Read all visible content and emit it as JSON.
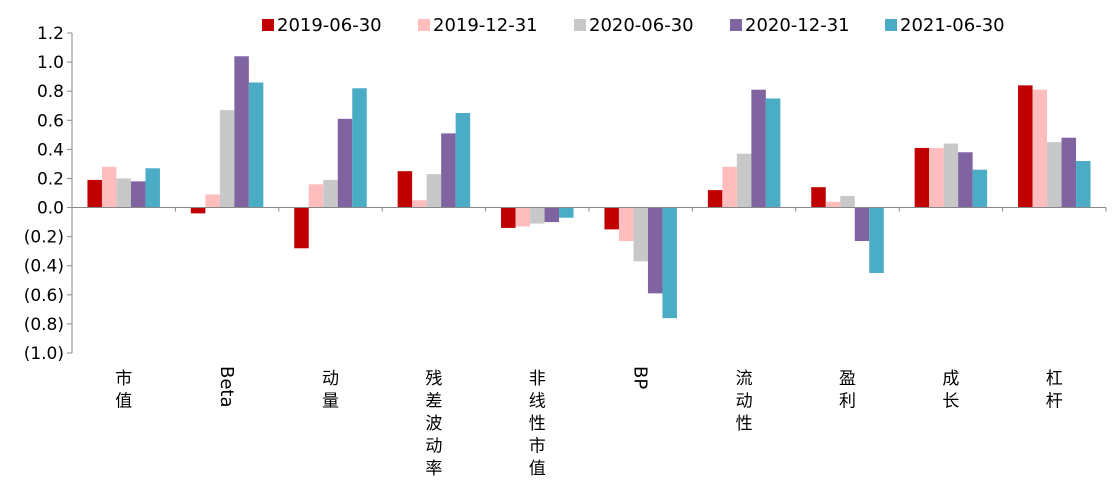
{
  "chart_data": {
    "type": "bar",
    "title": "",
    "xlabel": "",
    "ylabel": "",
    "ylim": [
      -1.0,
      1.2
    ],
    "y_ticks": [
      1.2,
      1.0,
      0.8,
      0.6,
      0.4,
      0.2,
      0.0,
      -0.2,
      -0.4,
      -0.6,
      -0.8,
      -1.0
    ],
    "y_tick_labels": [
      "1.2",
      "1.0",
      "0.8",
      "0.6",
      "0.4",
      "0.2",
      "0.0",
      "(0.2)",
      "(0.4)",
      "(0.6)",
      "(0.8)",
      "(1.0)"
    ],
    "grid": false,
    "legend_position": "top",
    "categories": [
      "市值",
      "Beta",
      "动量",
      "残差波动率",
      "非线性市值",
      "BP",
      "流动性",
      "盈利",
      "成长",
      "杠杆"
    ],
    "series": [
      {
        "name": "2019-06-30",
        "color": "#C00000",
        "values": [
          0.19,
          -0.04,
          -0.28,
          0.25,
          -0.14,
          -0.15,
          0.12,
          0.14,
          0.41,
          0.84
        ]
      },
      {
        "name": "2019-12-31",
        "color": "#FFBDBD",
        "values": [
          0.28,
          0.09,
          0.16,
          0.05,
          -0.13,
          -0.23,
          0.28,
          0.04,
          0.41,
          0.81
        ]
      },
      {
        "name": "2020-06-30",
        "color": "#C8C8C8",
        "values": [
          0.2,
          0.67,
          0.19,
          0.23,
          -0.11,
          -0.37,
          0.37,
          0.08,
          0.44,
          0.45
        ]
      },
      {
        "name": "2020-12-31",
        "color": "#8064A2",
        "values": [
          0.18,
          1.04,
          0.61,
          0.51,
          -0.1,
          -0.59,
          0.81,
          -0.23,
          0.38,
          0.48
        ]
      },
      {
        "name": "2021-06-30",
        "color": "#4BACC6",
        "values": [
          0.27,
          0.86,
          0.82,
          0.65,
          -0.07,
          -0.76,
          0.75,
          -0.45,
          0.26,
          0.32
        ]
      }
    ]
  }
}
